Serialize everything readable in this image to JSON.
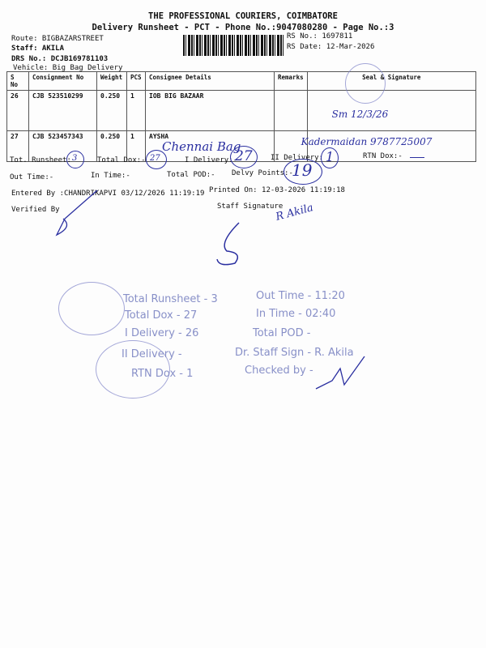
{
  "header": {
    "company": "THE PROFESSIONAL COURIERS, COIMBATORE",
    "subtitle": "Delivery Runsheet - PCT - Phone No.:9047080280 - Page No.:3",
    "route": "Route: BIGBAZARSTREET",
    "staff": "Staff: AKILA",
    "drs": "DRS No.: DCJB169781103",
    "vehicle": "Vehicle: Big Bag Delivery",
    "rs_no": "RS No.: 1697811",
    "rs_date": "RS Date: 12-Mar-2026"
  },
  "table": {
    "headers": [
      "S No",
      "Consignment No",
      "Weight",
      "PCS",
      "Consignee Details",
      "Remarks",
      "Seal & Signature"
    ],
    "rows": [
      {
        "sno": "26",
        "cons": "CJB 523510299",
        "weight": "0.250",
        "pcs": "1",
        "consignee": "IOB BIG BAZAAR",
        "hand": "",
        "sign": "Sm 12/3/26"
      },
      {
        "sno": "27",
        "cons": "CJB 523457343",
        "weight": "0.250",
        "pcs": "1",
        "consignee": "AYSHA",
        "hand": "Chennai Bag",
        "sign": "Kadermaidan 9787725007"
      }
    ]
  },
  "summary": {
    "tot_runsheet": "Tot. Runsheet:",
    "tot_runsheet_v": "3",
    "total_dox": "Total Dox:-",
    "total_dox_v": "27",
    "i_delivery": "I Delivery:-",
    "i_delivery_v": "27",
    "ii_delivery": "II Delivery:",
    "ii_delivery_v": "1",
    "rtn_dox": "RTN Dox:-",
    "out_time": "Out Time:-",
    "in_time": "In Time:-",
    "total_pod": "Total POD:-",
    "delvy_points": "Delvy Points:-",
    "delvy_points_v": "19",
    "entered_by": "Entered By :CHANDRIKAPVI 03/12/2026 11:19:19",
    "printed_on": "Printed On: 12-03-2026 11:19:18",
    "verified_by": "Verified By",
    "staff_signature": "Staff Signature",
    "staff_sign_hand": "R Akila"
  },
  "stamp_block": {
    "left": [
      "Total Runsheet - 3",
      "Total Dox - 27",
      "I Delivery - 26",
      "II Delivery -",
      "RTN Dox - 1"
    ],
    "right": [
      "Out Time - 11:20",
      "In Time - 02:40",
      "Total POD -",
      "Dr. Staff Sign - R. Akila",
      "Checked by -"
    ]
  }
}
